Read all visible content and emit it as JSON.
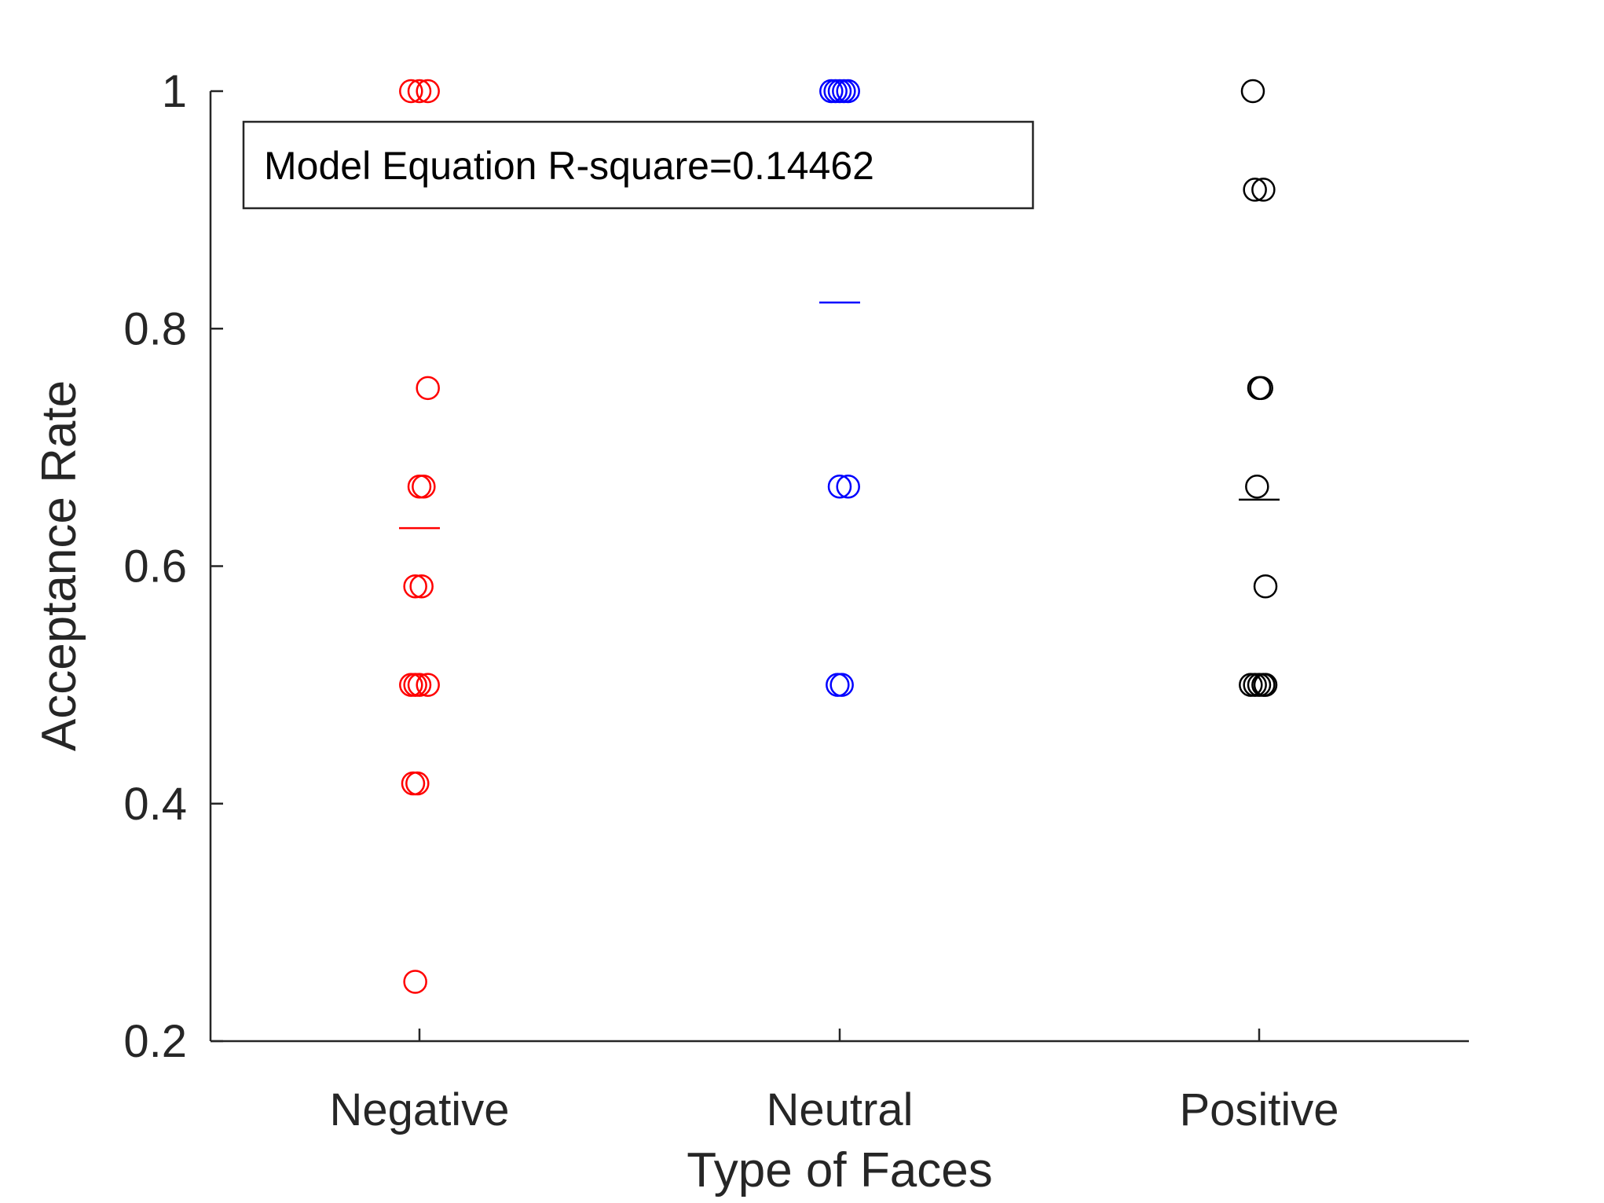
{
  "chart_data": {
    "type": "scatter",
    "xlabel": "Type of Faces",
    "ylabel": "Acceptance Rate",
    "categories": [
      "Negative",
      "Neutral",
      "Positive"
    ],
    "ylim": [
      0.2,
      1.0
    ],
    "yticks": [
      0.2,
      0.4,
      0.6,
      0.8,
      1
    ],
    "ytick_labels": [
      "0.2",
      "0.4",
      "0.6",
      "0.8",
      "1"
    ],
    "grid": false,
    "annotation": "Model Equation R-square=0.14462",
    "series": [
      {
        "category": "Negative",
        "color": "#ff0000",
        "marker": "open-circle",
        "mean": 0.632,
        "points": [
          {
            "jitter": -0.02,
            "y": 1.0
          },
          {
            "jitter": 0.0,
            "y": 1.0
          },
          {
            "jitter": 0.02,
            "y": 1.0
          },
          {
            "jitter": 0.02,
            "y": 0.75
          },
          {
            "jitter": 0.0,
            "y": 0.667
          },
          {
            "jitter": 0.01,
            "y": 0.667
          },
          {
            "jitter": -0.01,
            "y": 0.583
          },
          {
            "jitter": 0.005,
            "y": 0.583
          },
          {
            "jitter": -0.02,
            "y": 0.5
          },
          {
            "jitter": -0.01,
            "y": 0.5
          },
          {
            "jitter": 0.0,
            "y": 0.5
          },
          {
            "jitter": 0.02,
            "y": 0.5
          },
          {
            "jitter": -0.015,
            "y": 0.417
          },
          {
            "jitter": -0.005,
            "y": 0.417
          },
          {
            "jitter": -0.01,
            "y": 0.25
          }
        ]
      },
      {
        "category": "Neutral",
        "color": "#0000ff",
        "marker": "open-circle",
        "mean": 0.822,
        "points": [
          {
            "jitter": -0.02,
            "y": 1.0
          },
          {
            "jitter": -0.01,
            "y": 1.0
          },
          {
            "jitter": 0.0,
            "y": 1.0
          },
          {
            "jitter": 0.01,
            "y": 1.0
          },
          {
            "jitter": 0.02,
            "y": 1.0
          },
          {
            "jitter": 0.0,
            "y": 0.667
          },
          {
            "jitter": 0.02,
            "y": 0.667
          },
          {
            "jitter": -0.005,
            "y": 0.5
          },
          {
            "jitter": 0.005,
            "y": 0.5
          }
        ]
      },
      {
        "category": "Positive",
        "color": "#000000",
        "marker": "open-circle",
        "mean": 0.656,
        "points": [
          {
            "jitter": -0.015,
            "y": 1.0
          },
          {
            "jitter": -0.01,
            "y": 0.917
          },
          {
            "jitter": 0.01,
            "y": 0.917
          },
          {
            "jitter": 0.0,
            "y": 0.75
          },
          {
            "jitter": 0.005,
            "y": 0.75
          },
          {
            "jitter": -0.005,
            "y": 0.667
          },
          {
            "jitter": 0.015,
            "y": 0.583
          },
          {
            "jitter": -0.02,
            "y": 0.5
          },
          {
            "jitter": -0.01,
            "y": 0.5
          },
          {
            "jitter": 0.0,
            "y": 0.5
          },
          {
            "jitter": 0.01,
            "y": 0.5
          },
          {
            "jitter": 0.015,
            "y": 0.5
          }
        ]
      }
    ]
  }
}
